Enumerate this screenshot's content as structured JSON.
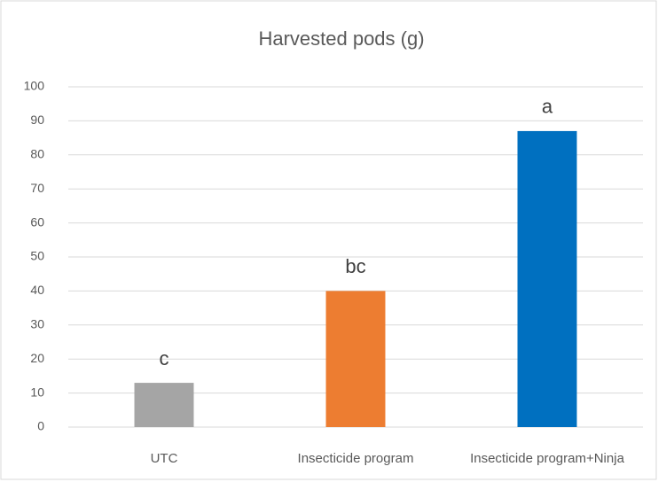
{
  "chart_data": {
    "type": "bar",
    "title": "Harvested pods (g)",
    "categories": [
      "UTC",
      "Insecticide program",
      "Insecticide program+Ninja"
    ],
    "values": [
      13,
      40,
      87
    ],
    "colors": [
      "#a5a5a5",
      "#ed7d31",
      "#0070c0"
    ],
    "annotations": [
      "c",
      "bc",
      "a"
    ],
    "ylim": [
      0,
      100
    ],
    "yticks": [
      0,
      10,
      20,
      30,
      40,
      50,
      60,
      70,
      80,
      90,
      100
    ],
    "grid": true
  }
}
